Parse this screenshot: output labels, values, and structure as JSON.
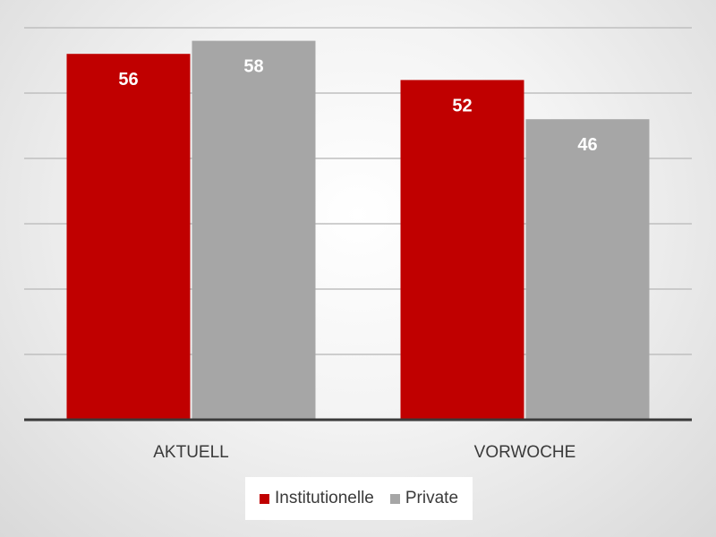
{
  "chart_data": {
    "type": "bar",
    "categories": [
      "AKTUELL",
      "VORWOCHE"
    ],
    "series": [
      {
        "name": "Institutionelle",
        "values": [
          56,
          52
        ],
        "color": "#c00000"
      },
      {
        "name": "Private",
        "values": [
          58,
          46
        ],
        "color": "#a6a6a6"
      }
    ],
    "ylim": [
      0,
      60
    ],
    "grid": true,
    "legend_position": "bottom",
    "data_labels": true
  }
}
